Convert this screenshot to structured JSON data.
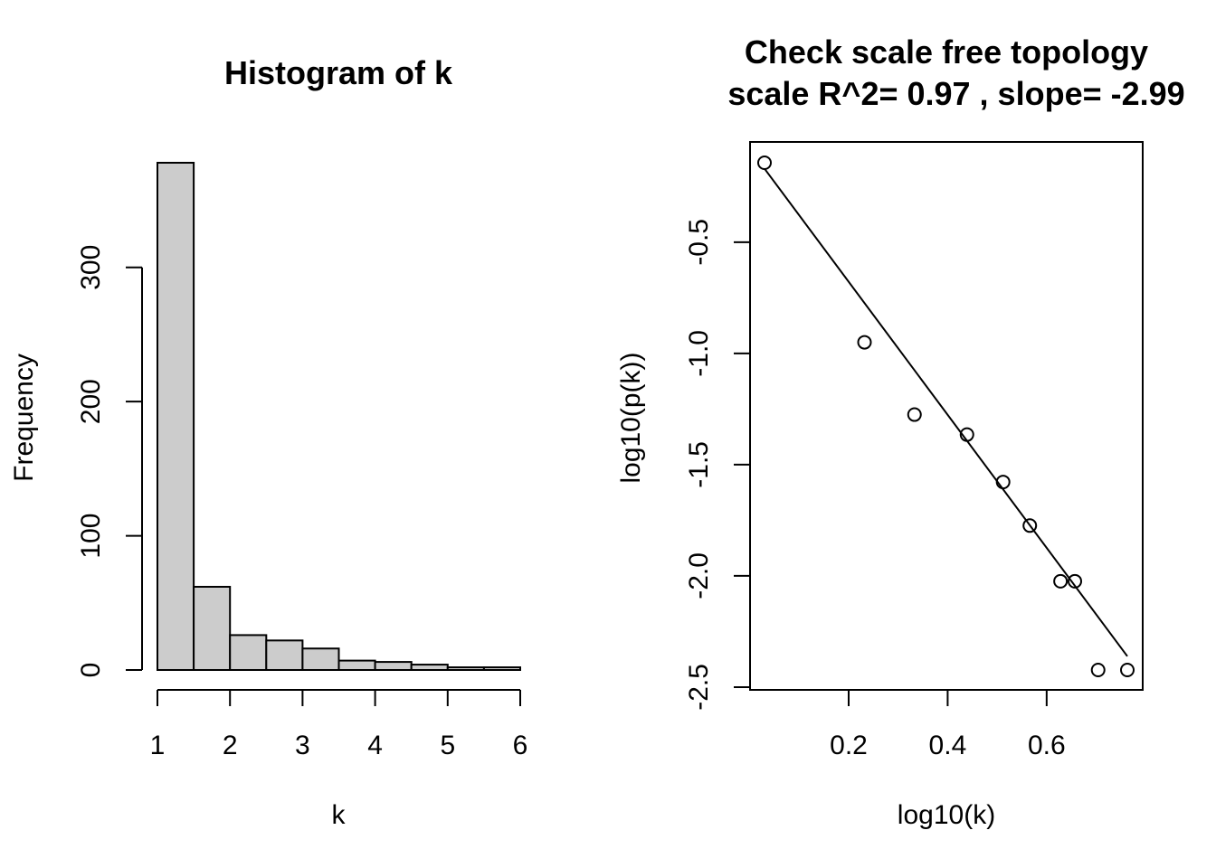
{
  "chart_data": [
    {
      "type": "bar",
      "title": "Histogram of k",
      "xlabel": "k",
      "ylabel": "Frequency",
      "bin_edges": [
        1,
        1.5,
        2,
        2.5,
        3,
        3.5,
        4,
        4.5,
        5,
        5.5,
        6
      ],
      "values": [
        378,
        62,
        26,
        22,
        16,
        7,
        6,
        4,
        2,
        2
      ],
      "xlim": [
        1,
        6
      ],
      "ylim": [
        0,
        378
      ],
      "x_ticks": [
        1,
        2,
        3,
        4,
        5,
        6
      ],
      "y_ticks": [
        0,
        100,
        200,
        300
      ],
      "bar_color": "#cccccc"
    },
    {
      "type": "scatter",
      "title_line1": "Check scale free topology",
      "title_line2": "scale R^2= 0.97 , slope= -2.99",
      "xlabel": "log10(k)",
      "ylabel": "log10(p(k))",
      "x": [
        0.03,
        0.232,
        0.333,
        0.439,
        0.512,
        0.566,
        0.628,
        0.657,
        0.704,
        0.763
      ],
      "y": [
        -0.143,
        -0.95,
        -1.275,
        -1.365,
        -1.578,
        -1.774,
        -2.024,
        -2.024,
        -2.423,
        -2.423
      ],
      "fit_line": {
        "intercept": -0.08,
        "slope": -2.99,
        "x_range": [
          0.03,
          0.763
        ]
      },
      "xlim": [
        0.03,
        0.763
      ],
      "ylim": [
        -2.423,
        -0.143
      ],
      "x_ticks": [
        0.2,
        0.4,
        0.6
      ],
      "y_ticks": [
        -2.5,
        -2.0,
        -1.5,
        -1.0,
        -0.5
      ]
    }
  ]
}
